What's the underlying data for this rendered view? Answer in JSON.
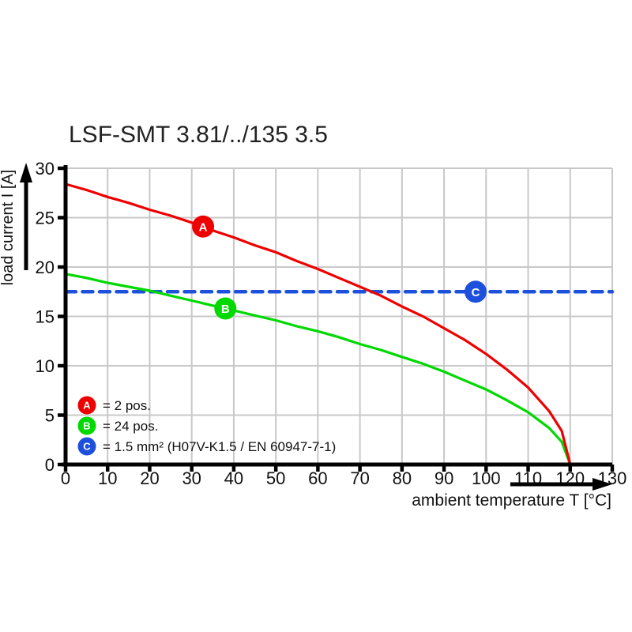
{
  "title": "LSF-SMT 3.81/../135 3.5",
  "chart_data": {
    "type": "line",
    "title": "LSF-SMT 3.81/../135 3.5",
    "xlabel": "ambient temperature T [°C]",
    "ylabel": "load current I [A]",
    "xlim": [
      0,
      130
    ],
    "ylim": [
      0,
      30
    ],
    "xticks": [
      0,
      10,
      20,
      30,
      40,
      50,
      60,
      70,
      80,
      90,
      100,
      110,
      120,
      130
    ],
    "yticks": [
      0,
      5,
      10,
      15,
      20,
      25,
      30
    ],
    "grid": true,
    "grid_color": "#c8c8c8",
    "axis_color": "#000000",
    "text_color": "#111111",
    "legend_position": "bottom-left",
    "series": [
      {
        "name": "A",
        "legend_label": "= 2 pos.",
        "color": "#ee0000",
        "line_style": "solid",
        "x": [
          0,
          5,
          10,
          15,
          20,
          25,
          30,
          35,
          40,
          45,
          50,
          55,
          60,
          65,
          70,
          75,
          80,
          85,
          90,
          95,
          100,
          105,
          110,
          115,
          118,
          120
        ],
        "y": [
          28.4,
          27.8,
          27.1,
          26.5,
          25.8,
          25.2,
          24.5,
          23.7,
          23.0,
          22.2,
          21.5,
          20.6,
          19.8,
          18.9,
          18.0,
          17.1,
          16.0,
          15.0,
          13.8,
          12.6,
          11.2,
          9.6,
          7.8,
          5.4,
          3.4,
          0
        ]
      },
      {
        "name": "B",
        "legend_label": "= 24 pos.",
        "color": "#00d900",
        "line_style": "solid",
        "x": [
          0,
          5,
          10,
          15,
          20,
          25,
          30,
          35,
          40,
          45,
          50,
          55,
          60,
          65,
          70,
          75,
          80,
          85,
          90,
          95,
          100,
          105,
          110,
          115,
          118,
          120
        ],
        "y": [
          19.3,
          18.9,
          18.4,
          18.0,
          17.6,
          17.1,
          16.6,
          16.1,
          15.6,
          15.1,
          14.6,
          14.0,
          13.5,
          12.9,
          12.2,
          11.6,
          10.9,
          10.2,
          9.4,
          8.5,
          7.6,
          6.5,
          5.3,
          3.7,
          2.3,
          0
        ]
      },
      {
        "name": "C",
        "legend_label": "= 1.5 mm² (H07V-K1.5 / EN 60947-7-1)",
        "color": "#1d50dc",
        "line_style": "dashed",
        "x": [
          0,
          130
        ],
        "y": [
          17.5,
          17.5
        ]
      }
    ],
    "markers": [
      {
        "label": "A",
        "x": 32.7,
        "y": 24.1,
        "color": "#ee0000"
      },
      {
        "label": "B",
        "x": 38.0,
        "y": 15.8,
        "color": "#00d900"
      },
      {
        "label": "C",
        "x": 97.5,
        "y": 17.5,
        "color": "#1d50dc"
      }
    ]
  }
}
